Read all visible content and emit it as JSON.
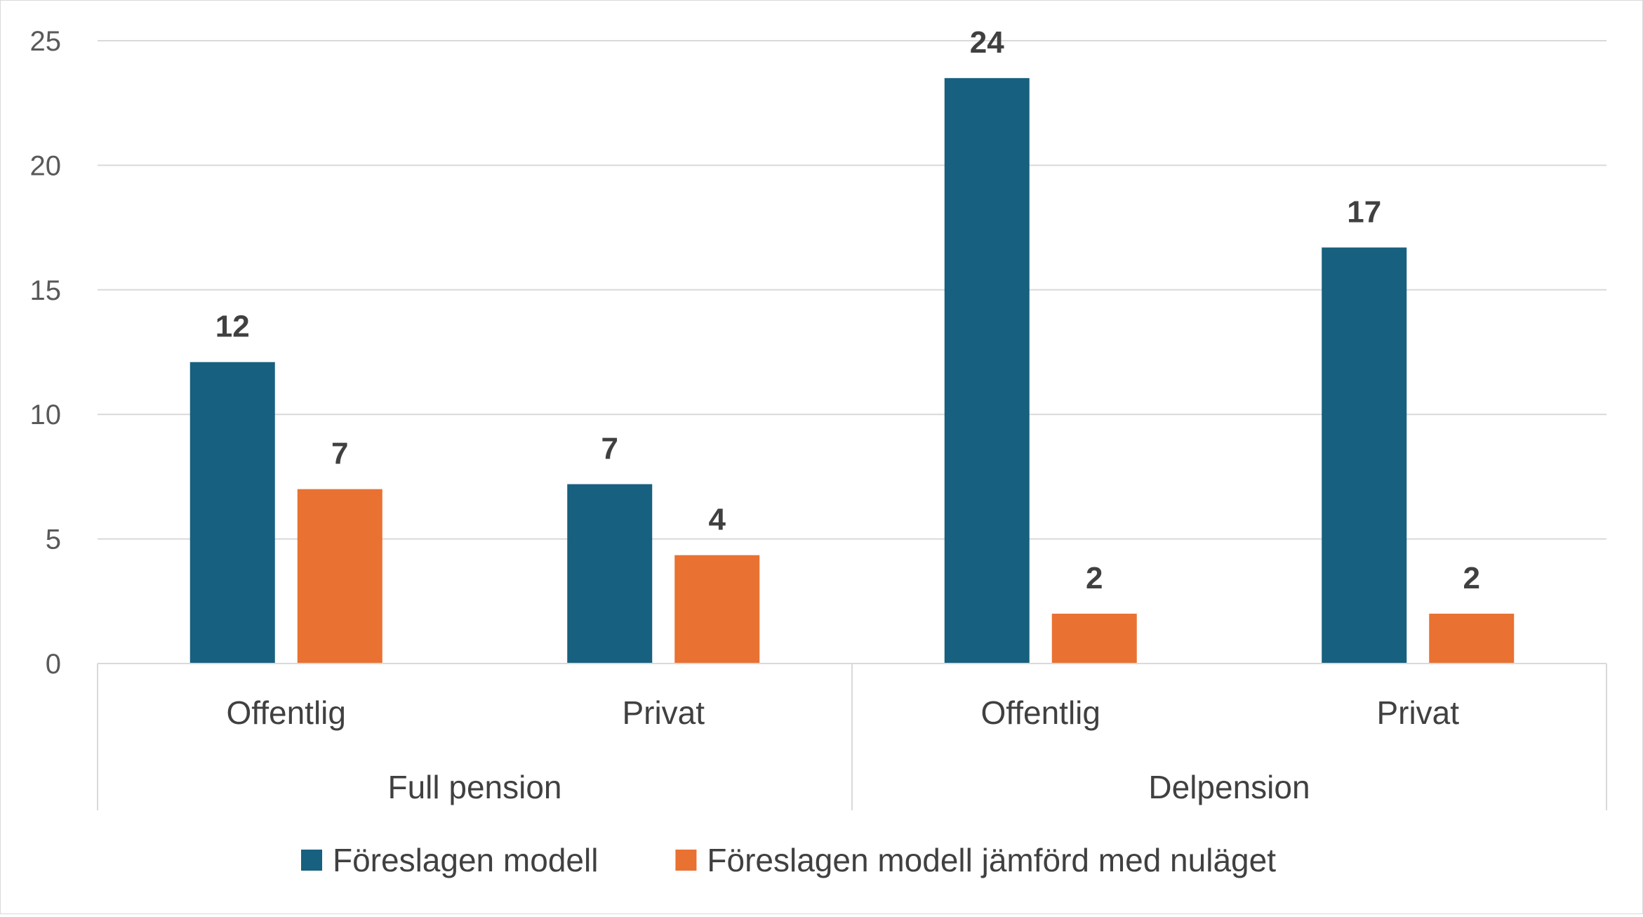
{
  "chart_data": {
    "type": "bar",
    "title": "",
    "xlabel": "",
    "ylabel": "",
    "ylim": [
      0,
      25
    ],
    "yticks": [
      0,
      5,
      10,
      15,
      20,
      25
    ],
    "grid": true,
    "legend_position": "bottom",
    "groups": [
      {
        "label": "Full pension",
        "categories": [
          "Offentlig",
          "Privat"
        ]
      },
      {
        "label": "Delpension",
        "categories": [
          "Offentlig",
          "Privat"
        ]
      }
    ],
    "categories": [
      "Offentlig",
      "Privat",
      "Offentlig",
      "Privat"
    ],
    "series": [
      {
        "name": "Föreslagen modell",
        "color": "#17607f",
        "values": [
          12.1,
          7.2,
          23.5,
          16.7
        ],
        "labels": [
          "12",
          "7",
          "24",
          "17"
        ]
      },
      {
        "name": "Föreslagen modell jämförd med nuläget",
        "color": "#e97132",
        "values": [
          7.0,
          4.35,
          2.0,
          2.0
        ],
        "labels": [
          "7",
          "4",
          "2",
          "2"
        ]
      }
    ]
  }
}
